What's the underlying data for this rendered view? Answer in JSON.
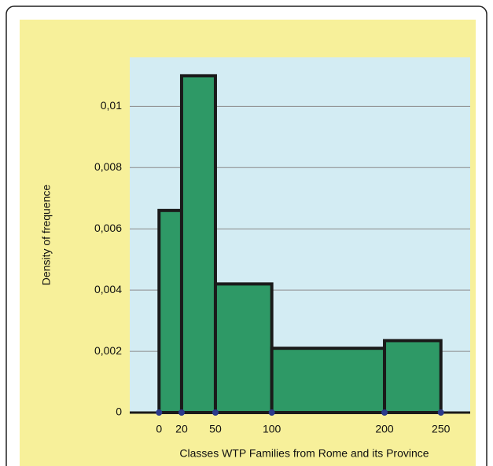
{
  "chart_data": {
    "type": "histogram",
    "x_label": "Classes WTP Families from Rome and its Province",
    "y_label": "Density of frequence",
    "bins": [
      0,
      20,
      50,
      100,
      200,
      250
    ],
    "values": [
      0.0066,
      0.011,
      0.0042,
      0.0021,
      0.00235
    ],
    "color": "#2e9966",
    "xlim": [
      -26,
      276
    ],
    "ylim": [
      0,
      0.0116
    ],
    "xticks": [
      0,
      20,
      50,
      100,
      200,
      250
    ],
    "yticks": [
      0,
      {
        "value": 0.002,
        "label": "0,002"
      },
      {
        "value": 0.004,
        "label": "0,004"
      },
      {
        "value": 0.006,
        "label": "0,006"
      },
      {
        "value": 0.008,
        "label": "0,008"
      },
      {
        "value": 0.01,
        "label": "0,01"
      }
    ],
    "grid": true
  }
}
